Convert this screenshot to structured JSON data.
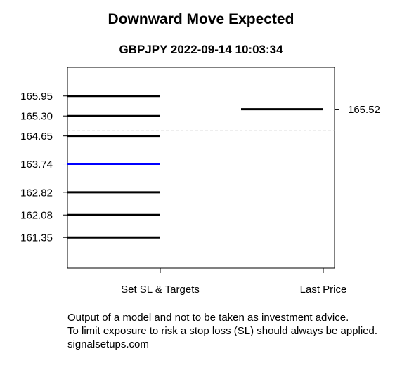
{
  "chart_data": {
    "type": "line",
    "title": "Downward Move Expected",
    "subtitle": "GBPJPY 2022-09-14 10:03:34",
    "categories": [
      "Set SL & Targets",
      "Last Price"
    ],
    "ylim": [
      160.35,
      166.88
    ],
    "grid": false,
    "levels": [
      {
        "value": 165.95,
        "label": "165.95",
        "color": "#000000"
      },
      {
        "value": 165.3,
        "label": "165.30",
        "color": "#000000"
      },
      {
        "value": 164.65,
        "label": "164.65",
        "color": "#000000"
      },
      {
        "value": 163.74,
        "label": "163.74",
        "color": "#0000ff"
      },
      {
        "value": 162.82,
        "label": "162.82",
        "color": "#000000"
      },
      {
        "value": 162.08,
        "label": "162.08",
        "color": "#000000"
      },
      {
        "value": 161.35,
        "label": "161.35",
        "color": "#000000"
      }
    ],
    "last_price": {
      "value": 165.52,
      "label": "165.52",
      "color": "#000000"
    },
    "reference_lines": [
      {
        "value": 164.82,
        "color": "#bebebe",
        "style": "dashed"
      },
      {
        "value": 163.74,
        "color": "#00008b",
        "style": "dashed"
      }
    ]
  },
  "disclaimer": {
    "line1": "Output of a model and not to be taken as investment advice.",
    "line2": "To limit exposure to risk a stop loss (SL) should always be applied.",
    "line3": "signalsetups.com"
  }
}
